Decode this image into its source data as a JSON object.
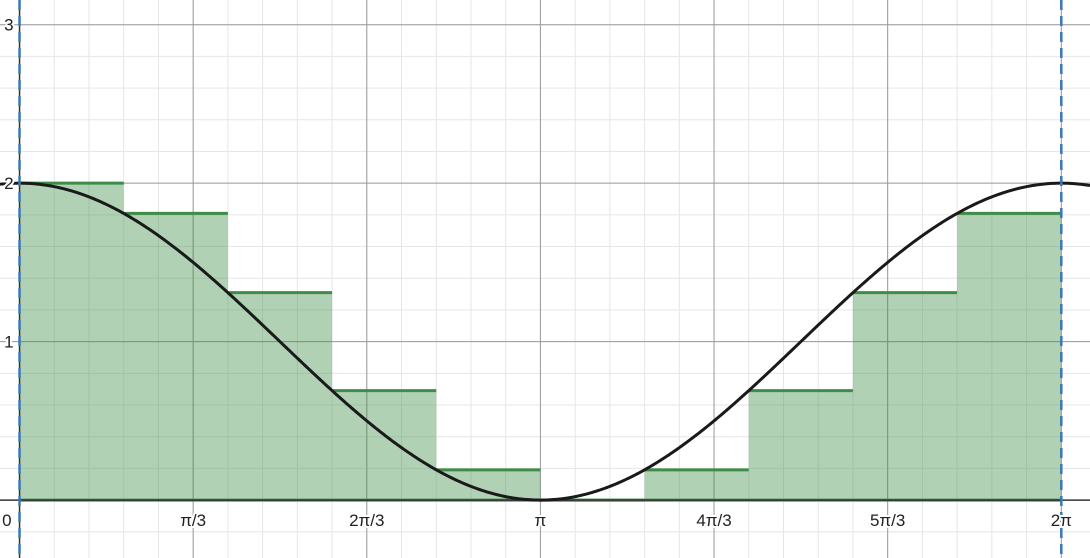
{
  "chart_data": {
    "type": "line",
    "title": "",
    "xlabel": "",
    "ylabel": "",
    "xlim": [
      -0.1178,
      6.4563
    ],
    "ylim": [
      -0.3655,
      3.1559
    ],
    "grid": true,
    "x_ticks": [
      {
        "value": 0,
        "label": "0"
      },
      {
        "value": 1.0472,
        "label": "π/3"
      },
      {
        "value": 2.0944,
        "label": "2π/3"
      },
      {
        "value": 3.1416,
        "label": "π"
      },
      {
        "value": 4.1888,
        "label": "4π/3"
      },
      {
        "value": 5.236,
        "label": "5π/3"
      },
      {
        "value": 6.2832,
        "label": "2π"
      }
    ],
    "y_ticks": [
      {
        "value": 1,
        "label": "1"
      },
      {
        "value": 2,
        "label": "2"
      },
      {
        "value": 3,
        "label": "3"
      }
    ],
    "series": [
      {
        "kind": "function",
        "expression": "1 + cos(x)",
        "color": "#1a1a1a",
        "x_range": [
          -0.1178,
          6.4563
        ]
      },
      {
        "kind": "riemann-rectangles",
        "method": "left endpoint",
        "color": "#3d8c47",
        "fill": "#3d8c47",
        "fill_opacity": 0.4,
        "x_start": 0,
        "width": 0.6283,
        "heights": [
          2.0,
          1.809,
          1.309,
          0.691,
          0.191,
          0.0,
          0.191,
          0.691,
          1.309,
          1.809
        ]
      }
    ],
    "boundary_lines": [
      {
        "x": 0,
        "color": "#3a78b5",
        "style": "dashed"
      },
      {
        "x": 6.2832,
        "color": "#3a78b5",
        "style": "dashed"
      }
    ]
  }
}
